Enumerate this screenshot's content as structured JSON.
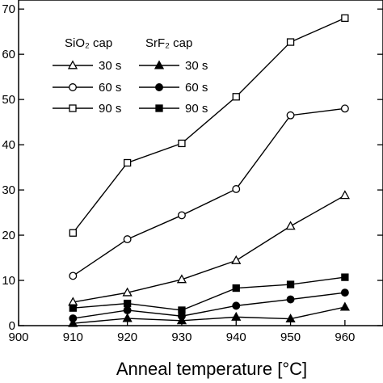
{
  "chart_data": {
    "type": "line",
    "xlabel": "Anneal temperature [°C]",
    "ylabel": "",
    "xlim": [
      900,
      967
    ],
    "ylim": [
      0,
      72
    ],
    "xticks": [
      900,
      910,
      920,
      930,
      940,
      950,
      960
    ],
    "xtick_labels": [
      "900",
      "910",
      "920",
      "930",
      "940",
      "950",
      "960"
    ],
    "yticks": [
      0,
      10,
      20,
      30,
      40,
      50,
      60,
      70
    ],
    "ytick_labels": [
      "0",
      "10",
      "20",
      "30",
      "40",
      "50",
      "60",
      "70"
    ],
    "x": [
      910,
      920,
      930,
      940,
      950,
      960
    ],
    "grid": false,
    "legend_headers": [
      "SiO₂ cap",
      "SrF₂ cap"
    ],
    "series": [
      {
        "name": "30 s",
        "group": "SiO₂ cap",
        "marker": "triangle",
        "filled": false,
        "values": [
          5.2,
          7.3,
          10.2,
          14.4,
          22.0,
          28.8
        ]
      },
      {
        "name": "60 s",
        "group": "SiO₂ cap",
        "marker": "circle",
        "filled": false,
        "values": [
          11.0,
          19.1,
          24.4,
          30.2,
          46.5,
          48.0
        ]
      },
      {
        "name": "90 s",
        "group": "SiO₂ cap",
        "marker": "square",
        "filled": false,
        "values": [
          20.5,
          36.0,
          40.3,
          50.6,
          62.7,
          68.0
        ]
      },
      {
        "name": "30 s",
        "group": "SrF₂ cap",
        "marker": "triangle",
        "filled": true,
        "values": [
          0.5,
          1.6,
          1.1,
          1.9,
          1.5,
          4.1
        ]
      },
      {
        "name": "60 s",
        "group": "SrF₂ cap",
        "marker": "circle",
        "filled": true,
        "values": [
          1.6,
          3.4,
          2.1,
          4.4,
          5.8,
          7.3
        ]
      },
      {
        "name": "90 s",
        "group": "SrF₂ cap",
        "marker": "square",
        "filled": true,
        "values": [
          3.9,
          4.9,
          3.4,
          8.3,
          9.1,
          10.7
        ]
      }
    ]
  }
}
